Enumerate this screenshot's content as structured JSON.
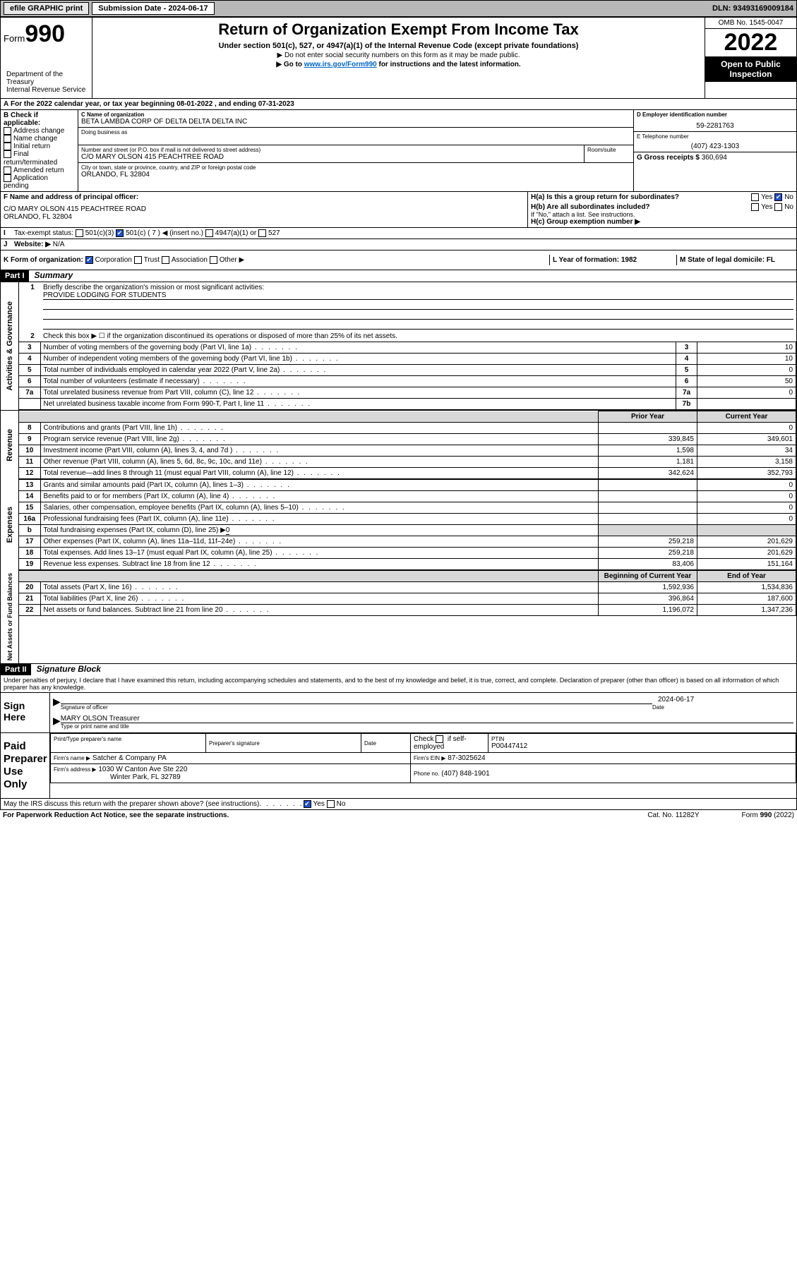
{
  "topbar": {
    "efile": "efile GRAPHIC print",
    "submission": "Submission Date - 2024-06-17",
    "dln": "DLN: 93493169009184"
  },
  "header": {
    "form_label": "Form",
    "form_num": "990",
    "dept": "Department of the Treasury\nInternal Revenue Service",
    "title": "Return of Organization Exempt From Income Tax",
    "sub1": "Under section 501(c), 527, or 4947(a)(1) of the Internal Revenue Code (except private foundations)",
    "sub2": "▶ Do not enter social security numbers on this form as it may be made public.",
    "sub3_pre": "▶ Go to ",
    "sub3_link": "www.irs.gov/Form990",
    "sub3_post": " for instructions and the latest information.",
    "omb": "OMB No. 1545-0047",
    "year": "2022",
    "open": "Open to Public Inspection"
  },
  "sectionA": {
    "period": "For the 2022 calendar year, or tax year beginning 08-01-2022    , and ending 07-31-2023",
    "B_label": "B Check if applicable:",
    "B_opts": [
      "Address change",
      "Name change",
      "Initial return",
      "Final return/terminated",
      "Amended return",
      "Application pending"
    ],
    "C_label": "C Name of organization",
    "org_name": "BETA LAMBDA CORP OF DELTA DELTA DELTA INC",
    "dba_label": "Doing business as",
    "addr_label": "Number and street (or P.O. box if mail is not delivered to street address)",
    "room_label": "Room/suite",
    "addr": "C/O MARY OLSON 415 PEACHTREE ROAD",
    "city_label": "City or town, state or province, country, and ZIP or foreign postal code",
    "city": "ORLANDO, FL  32804",
    "D_label": "D Employer identification number",
    "ein": "59-2281763",
    "E_label": "E Telephone number",
    "phone": "(407) 423-1303",
    "G_label": "G Gross receipts $",
    "gross": "360,694",
    "F_label": "F  Name and address of principal officer:",
    "officer": "C/O MARY OLSON 415 PEACHTREE ROAD\nORLANDO, FL  32804",
    "Ha": "H(a)  Is this a group return for subordinates?",
    "Hb": "H(b)  Are all subordinates included?",
    "H_no": "If \"No,\" attach a list. See instructions.",
    "Hc": "H(c)  Group exemption number ▶",
    "yes": "Yes",
    "no": "No",
    "I_label": "Tax-exempt status:",
    "I_501c3": "501(c)(3)",
    "I_501c": "501(c) ( 7 ) ◀ (insert no.)",
    "I_4947": "4947(a)(1) or",
    "I_527": "527",
    "J_label": "Website: ▶",
    "website": "N/A",
    "K_label": "K Form of organization:",
    "K_corp": "Corporation",
    "K_trust": "Trust",
    "K_assoc": "Association",
    "K_other": "Other ▶",
    "L_label": "L Year of formation: 1982",
    "M_label": "M State of legal domicile: FL"
  },
  "part1": {
    "hdr": "Part I",
    "title": "Summary",
    "vlabels": {
      "gov": "Activities & Governance",
      "rev": "Revenue",
      "exp": "Expenses",
      "net": "Net Assets or\nFund Balances"
    },
    "line1_label": "Briefly describe the organization's mission or most significant activities:",
    "line1_val": "PROVIDE LODGING FOR STUDENTS",
    "line2": "Check this box ▶ ☐ if the organization discontinued its operations or disposed of more than 25% of its net assets.",
    "rows_gov": [
      {
        "n": "3",
        "t": "Number of voting members of the governing body (Part VI, line 1a)",
        "box": "3",
        "v": "10"
      },
      {
        "n": "4",
        "t": "Number of independent voting members of the governing body (Part VI, line 1b)",
        "box": "4",
        "v": "10"
      },
      {
        "n": "5",
        "t": "Total number of individuals employed in calendar year 2022 (Part V, line 2a)",
        "box": "5",
        "v": "0"
      },
      {
        "n": "6",
        "t": "Total number of volunteers (estimate if necessary)",
        "box": "6",
        "v": "50"
      },
      {
        "n": "7a",
        "t": "Total unrelated business revenue from Part VIII, column (C), line 12",
        "box": "7a",
        "v": "0"
      },
      {
        "n": "",
        "t": "Net unrelated business taxable income from Form 990-T, Part I, line 11",
        "box": "7b",
        "v": ""
      }
    ],
    "col_prior": "Prior Year",
    "col_curr": "Current Year",
    "col_beg": "Beginning of Current Year",
    "col_end": "End of Year",
    "rows_rev": [
      {
        "n": "8",
        "t": "Contributions and grants (Part VIII, line 1h)",
        "p": "",
        "c": "0"
      },
      {
        "n": "9",
        "t": "Program service revenue (Part VIII, line 2g)",
        "p": "339,845",
        "c": "349,601"
      },
      {
        "n": "10",
        "t": "Investment income (Part VIII, column (A), lines 3, 4, and 7d )",
        "p": "1,598",
        "c": "34"
      },
      {
        "n": "11",
        "t": "Other revenue (Part VIII, column (A), lines 5, 6d, 8c, 9c, 10c, and 11e)",
        "p": "1,181",
        "c": "3,158"
      },
      {
        "n": "12",
        "t": "Total revenue—add lines 8 through 11 (must equal Part VIII, column (A), line 12)",
        "p": "342,624",
        "c": "352,793"
      }
    ],
    "rows_exp": [
      {
        "n": "13",
        "t": "Grants and similar amounts paid (Part IX, column (A), lines 1–3)",
        "p": "",
        "c": "0"
      },
      {
        "n": "14",
        "t": "Benefits paid to or for members (Part IX, column (A), line 4)",
        "p": "",
        "c": "0"
      },
      {
        "n": "15",
        "t": "Salaries, other compensation, employee benefits (Part IX, column (A), lines 5–10)",
        "p": "",
        "c": "0"
      },
      {
        "n": "16a",
        "t": "Professional fundraising fees (Part IX, column (A), line 11e)",
        "p": "",
        "c": "0"
      }
    ],
    "row_b": "Total fundraising expenses (Part IX, column (D), line 25) ▶",
    "row_b_val": "0",
    "rows_exp2": [
      {
        "n": "17",
        "t": "Other expenses (Part IX, column (A), lines 11a–11d, 11f–24e)",
        "p": "259,218",
        "c": "201,629"
      },
      {
        "n": "18",
        "t": "Total expenses. Add lines 13–17 (must equal Part IX, column (A), line 25)",
        "p": "259,218",
        "c": "201,629"
      },
      {
        "n": "19",
        "t": "Revenue less expenses. Subtract line 18 from line 12",
        "p": "83,406",
        "c": "151,164"
      }
    ],
    "rows_net": [
      {
        "n": "20",
        "t": "Total assets (Part X, line 16)",
        "p": "1,592,936",
        "c": "1,534,836"
      },
      {
        "n": "21",
        "t": "Total liabilities (Part X, line 26)",
        "p": "396,864",
        "c": "187,600"
      },
      {
        "n": "22",
        "t": "Net assets or fund balances. Subtract line 21 from line 20",
        "p": "1,196,072",
        "c": "1,347,236"
      }
    ]
  },
  "part2": {
    "hdr": "Part II",
    "title": "Signature Block",
    "decl": "Under penalties of perjury, I declare that I have examined this return, including accompanying schedules and statements, and to the best of my knowledge and belief, it is true, correct, and complete. Declaration of preparer (other than officer) is based on all information of which preparer has any knowledge.",
    "sign_here": "Sign Here",
    "sig_officer": "Signature of officer",
    "sig_date_label": "Date",
    "sig_date": "2024-06-17",
    "sig_name": "MARY OLSON Treasurer",
    "sig_name_label": "Type or print name and title",
    "paid": "Paid Preparer Use Only",
    "prep_name_label": "Print/Type preparer's name",
    "prep_sig_label": "Preparer's signature",
    "date_label": "Date",
    "check_self": "Check ☐ if self-employed",
    "ptin_label": "PTIN",
    "ptin": "P00447412",
    "firm_name_label": "Firm's name   ▶",
    "firm_name": "Satcher & Company PA",
    "firm_ein_label": "Firm's EIN ▶",
    "firm_ein": "87-3025624",
    "firm_addr_label": "Firm's address ▶",
    "firm_addr1": "1030 W Canton Ave Ste 220",
    "firm_addr2": "Winter Park, FL 32789",
    "firm_phone_label": "Phone no.",
    "firm_phone": "(407) 848-1901",
    "may_irs": "May the IRS discuss this return with the preparer shown above? (see instructions)",
    "paperwork": "For Paperwork Reduction Act Notice, see the separate instructions.",
    "catno": "Cat. No. 11282Y",
    "formno": "Form 990 (2022)"
  }
}
